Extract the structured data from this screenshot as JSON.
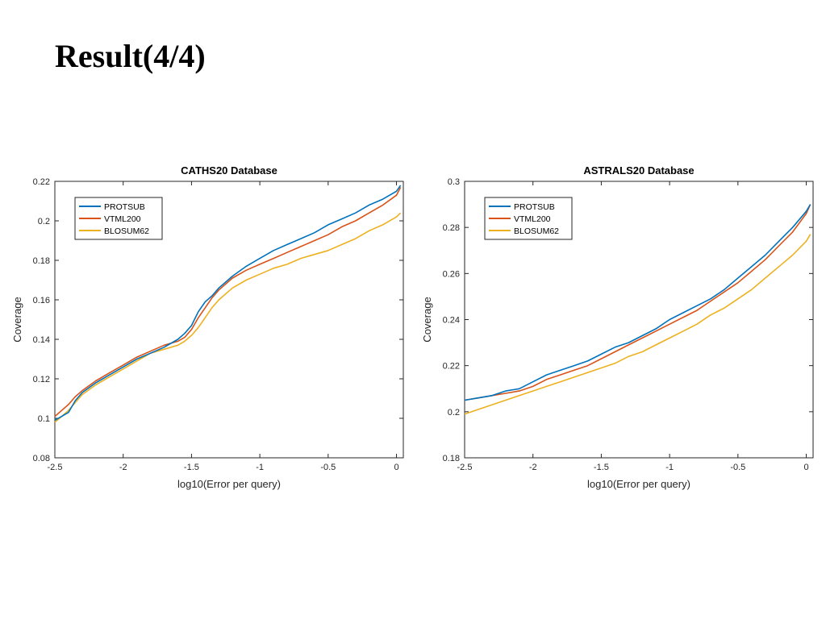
{
  "slide": {
    "title": "Result(4/4)"
  },
  "chart_data": [
    {
      "type": "line",
      "title": "CATHS20 Database",
      "xlabel": "log10(Error per query)",
      "ylabel": "Coverage",
      "xlim": [
        -2.5,
        0.05
      ],
      "ylim": [
        0.08,
        0.22
      ],
      "xticks": [
        -2.5,
        -2,
        -1.5,
        -1,
        -0.5,
        0
      ],
      "xtick_labels": [
        "-2.5",
        "-2",
        "-1.5",
        "-1",
        "-0.5",
        "0"
      ],
      "yticks": [
        0.08,
        0.1,
        0.12,
        0.14,
        0.16,
        0.18,
        0.2,
        0.22
      ],
      "ytick_labels": [
        "0.08",
        "0.1",
        "0.12",
        "0.14",
        "0.16",
        "0.18",
        "0.2",
        "0.22"
      ],
      "legend_position": "top-left",
      "grid": false,
      "series": [
        {
          "name": "PROTSUB",
          "color": "#0072BD",
          "x": [
            -2.5,
            -2.45,
            -2.4,
            -2.35,
            -2.3,
            -2.2,
            -2.1,
            -2.0,
            -1.9,
            -1.8,
            -1.7,
            -1.6,
            -1.55,
            -1.5,
            -1.45,
            -1.4,
            -1.35,
            -1.3,
            -1.2,
            -1.1,
            -1.0,
            -0.9,
            -0.8,
            -0.7,
            -0.6,
            -0.5,
            -0.4,
            -0.3,
            -0.2,
            -0.1,
            0.0,
            0.03
          ],
          "y": [
            0.099,
            0.101,
            0.103,
            0.109,
            0.113,
            0.118,
            0.122,
            0.126,
            0.13,
            0.133,
            0.136,
            0.14,
            0.143,
            0.147,
            0.154,
            0.159,
            0.162,
            0.166,
            0.172,
            0.177,
            0.181,
            0.185,
            0.188,
            0.191,
            0.194,
            0.198,
            0.201,
            0.204,
            0.208,
            0.211,
            0.215,
            0.218
          ]
        },
        {
          "name": "VTML200",
          "color": "#D95319",
          "x": [
            -2.5,
            -2.45,
            -2.4,
            -2.35,
            -2.3,
            -2.2,
            -2.1,
            -2.0,
            -1.9,
            -1.8,
            -1.7,
            -1.6,
            -1.55,
            -1.5,
            -1.45,
            -1.4,
            -1.35,
            -1.3,
            -1.2,
            -1.1,
            -1.0,
            -0.9,
            -0.8,
            -0.7,
            -0.6,
            -0.5,
            -0.4,
            -0.3,
            -0.2,
            -0.1,
            0.0,
            0.03
          ],
          "y": [
            0.101,
            0.104,
            0.107,
            0.111,
            0.114,
            0.119,
            0.123,
            0.127,
            0.131,
            0.134,
            0.137,
            0.139,
            0.141,
            0.145,
            0.151,
            0.156,
            0.161,
            0.165,
            0.171,
            0.175,
            0.178,
            0.181,
            0.184,
            0.187,
            0.19,
            0.193,
            0.197,
            0.2,
            0.204,
            0.208,
            0.213,
            0.217
          ]
        },
        {
          "name": "BLOSUM62",
          "color": "#EDB120",
          "x": [
            -2.5,
            -2.45,
            -2.4,
            -2.35,
            -2.3,
            -2.2,
            -2.1,
            -2.0,
            -1.9,
            -1.8,
            -1.7,
            -1.6,
            -1.55,
            -1.5,
            -1.45,
            -1.4,
            -1.35,
            -1.3,
            -1.2,
            -1.1,
            -1.0,
            -0.9,
            -0.8,
            -0.7,
            -0.6,
            -0.5,
            -0.4,
            -0.3,
            -0.2,
            -0.1,
            0.0,
            0.03
          ],
          "y": [
            0.098,
            0.101,
            0.104,
            0.108,
            0.112,
            0.117,
            0.121,
            0.125,
            0.129,
            0.133,
            0.135,
            0.137,
            0.139,
            0.142,
            0.146,
            0.151,
            0.156,
            0.16,
            0.166,
            0.17,
            0.173,
            0.176,
            0.178,
            0.181,
            0.183,
            0.185,
            0.188,
            0.191,
            0.195,
            0.198,
            0.202,
            0.204
          ]
        }
      ]
    },
    {
      "type": "line",
      "title": "ASTRALS20 Database",
      "xlabel": "log10(Error per query)",
      "ylabel": "Coverage",
      "xlim": [
        -2.5,
        0.05
      ],
      "ylim": [
        0.18,
        0.3
      ],
      "xticks": [
        -2.5,
        -2,
        -1.5,
        -1,
        -0.5,
        0
      ],
      "xtick_labels": [
        "-2.5",
        "-2",
        "-1.5",
        "-1",
        "-0.5",
        "0"
      ],
      "yticks": [
        0.18,
        0.2,
        0.22,
        0.24,
        0.26,
        0.28,
        0.3
      ],
      "ytick_labels": [
        "0.18",
        "0.2",
        "0.22",
        "0.24",
        "0.26",
        "0.28",
        "0.3"
      ],
      "legend_position": "top-left",
      "grid": false,
      "series": [
        {
          "name": "PROTSUB",
          "color": "#0072BD",
          "x": [
            -2.5,
            -2.4,
            -2.3,
            -2.2,
            -2.1,
            -2.0,
            -1.9,
            -1.8,
            -1.7,
            -1.6,
            -1.5,
            -1.4,
            -1.3,
            -1.2,
            -1.1,
            -1.0,
            -0.9,
            -0.8,
            -0.7,
            -0.6,
            -0.5,
            -0.4,
            -0.3,
            -0.2,
            -0.1,
            0.0,
            0.03
          ],
          "y": [
            0.205,
            0.206,
            0.207,
            0.209,
            0.21,
            0.213,
            0.216,
            0.218,
            0.22,
            0.222,
            0.225,
            0.228,
            0.23,
            0.233,
            0.236,
            0.24,
            0.243,
            0.246,
            0.249,
            0.253,
            0.258,
            0.263,
            0.268,
            0.274,
            0.28,
            0.287,
            0.29
          ]
        },
        {
          "name": "VTML200",
          "color": "#D95319",
          "x": [
            -2.5,
            -2.4,
            -2.3,
            -2.2,
            -2.1,
            -2.0,
            -1.9,
            -1.8,
            -1.7,
            -1.6,
            -1.5,
            -1.4,
            -1.3,
            -1.2,
            -1.1,
            -1.0,
            -0.9,
            -0.8,
            -0.7,
            -0.6,
            -0.5,
            -0.4,
            -0.3,
            -0.2,
            -0.1,
            0.0,
            0.03
          ],
          "y": [
            0.205,
            0.206,
            0.207,
            0.208,
            0.209,
            0.211,
            0.214,
            0.216,
            0.218,
            0.22,
            0.223,
            0.226,
            0.229,
            0.232,
            0.235,
            0.238,
            0.241,
            0.244,
            0.248,
            0.252,
            0.256,
            0.261,
            0.266,
            0.272,
            0.278,
            0.286,
            0.29
          ]
        },
        {
          "name": "BLOSUM62",
          "color": "#EDB120",
          "x": [
            -2.5,
            -2.4,
            -2.3,
            -2.2,
            -2.1,
            -2.0,
            -1.9,
            -1.8,
            -1.7,
            -1.6,
            -1.5,
            -1.4,
            -1.3,
            -1.2,
            -1.1,
            -1.0,
            -0.9,
            -0.8,
            -0.7,
            -0.6,
            -0.5,
            -0.4,
            -0.3,
            -0.2,
            -0.1,
            0.0,
            0.03
          ],
          "y": [
            0.199,
            0.201,
            0.203,
            0.205,
            0.207,
            0.209,
            0.211,
            0.213,
            0.215,
            0.217,
            0.219,
            0.221,
            0.224,
            0.226,
            0.229,
            0.232,
            0.235,
            0.238,
            0.242,
            0.245,
            0.249,
            0.253,
            0.258,
            0.263,
            0.268,
            0.274,
            0.277
          ]
        }
      ]
    }
  ]
}
